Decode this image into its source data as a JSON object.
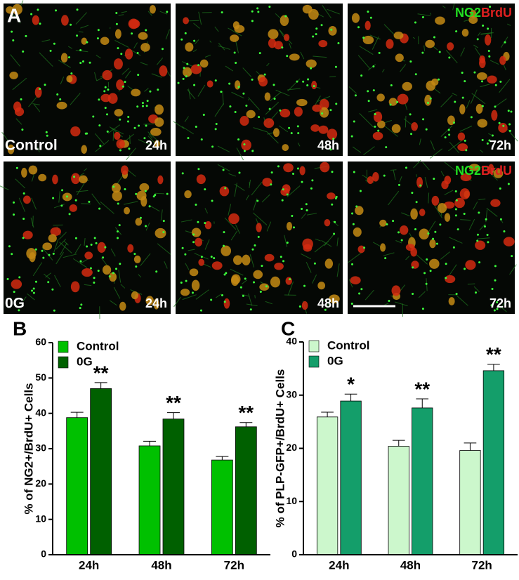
{
  "micrographs": {
    "panel_label": "A",
    "stain": [
      "NG2",
      "BrdU"
    ],
    "rows": [
      {
        "condition": "Control",
        "times": [
          "24h",
          "48h",
          "72h"
        ]
      },
      {
        "condition": "0G",
        "times": [
          "24h",
          "48h",
          "72h"
        ]
      }
    ]
  },
  "chart_data": [
    {
      "type": "bar",
      "panel_label": "B",
      "y_label": "% of NG2+/BrdU+ Cells",
      "categories": [
        "24h",
        "48h",
        "72h"
      ],
      "series": [
        {
          "name": "Control",
          "color": "#00c000",
          "values": [
            38.8,
            30.8,
            26.8
          ],
          "errors": [
            1.5,
            1.3,
            1.0
          ]
        },
        {
          "name": "0G",
          "color": "#006000",
          "values": [
            47.0,
            38.4,
            36.2
          ],
          "errors": [
            1.7,
            1.8,
            1.2
          ],
          "significance": [
            "**",
            "**",
            "**"
          ]
        }
      ],
      "ylim": [
        0,
        60
      ],
      "yticks": [
        0,
        10,
        20,
        30,
        40,
        50,
        60
      ],
      "legend": "top-left"
    },
    {
      "type": "bar",
      "panel_label": "C",
      "y_label": "% of PLP-GFP+/BrdU+ Cells",
      "categories": [
        "24h",
        "48h",
        "72h"
      ],
      "series": [
        {
          "name": "Control",
          "color": "#ccf7cc",
          "values": [
            25.9,
            20.4,
            19.6
          ],
          "errors": [
            0.9,
            1.1,
            1.4
          ]
        },
        {
          "name": "0G",
          "color": "#149e6a",
          "values": [
            28.9,
            27.6,
            34.6
          ],
          "errors": [
            1.3,
            1.7,
            1.2
          ],
          "significance": [
            "*",
            "**",
            "**"
          ]
        }
      ],
      "ylim": [
        0,
        40
      ],
      "yticks": [
        0,
        10,
        20,
        30,
        40
      ],
      "legend": "top-left"
    }
  ]
}
